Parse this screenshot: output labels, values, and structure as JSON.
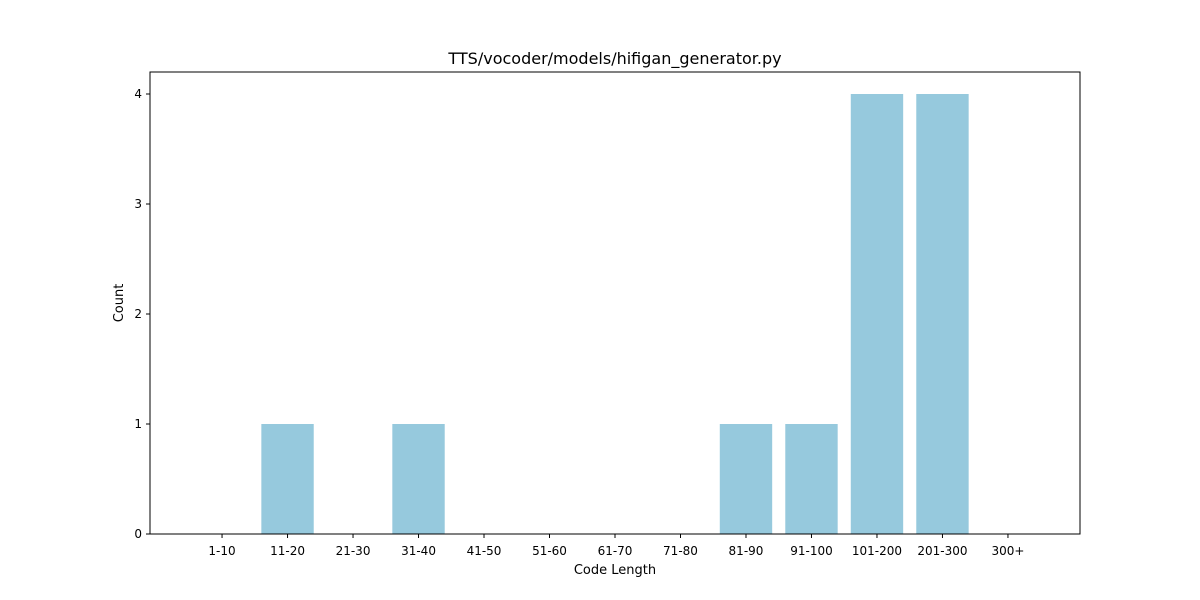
{
  "chart_data": {
    "type": "bar",
    "title": "TTS/vocoder/models/hifigan_generator.py",
    "xlabel": "Code Length",
    "ylabel": "Count",
    "categories": [
      "1-10",
      "11-20",
      "21-30",
      "31-40",
      "41-50",
      "51-60",
      "61-70",
      "71-80",
      "81-90",
      "91-100",
      "101-200",
      "201-300",
      "300+"
    ],
    "values": [
      0,
      1,
      0,
      1,
      0,
      0,
      0,
      0,
      1,
      1,
      4,
      4,
      0
    ],
    "ylim": [
      0,
      4.2
    ],
    "yticks": [
      0,
      1,
      2,
      3,
      4
    ],
    "bar_color": "#96c9dd",
    "grid": false,
    "legend": "none"
  }
}
